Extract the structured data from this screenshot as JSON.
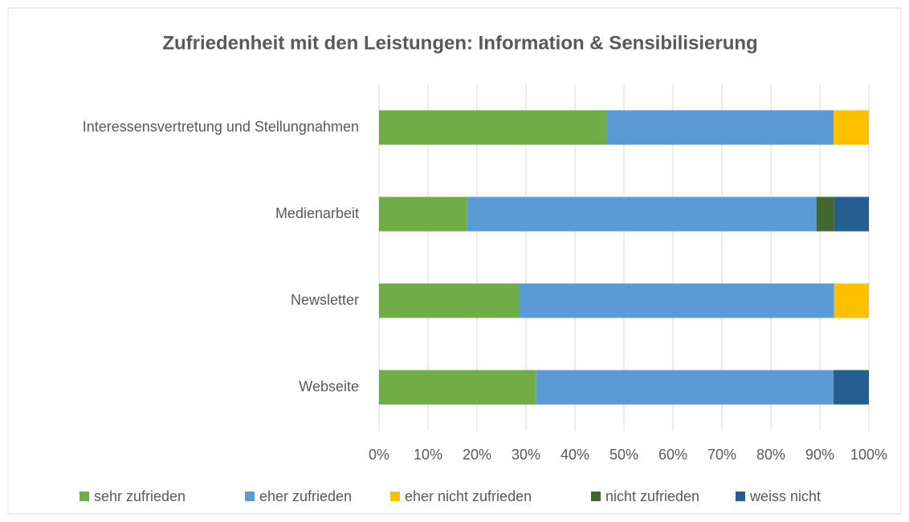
{
  "chart_data": {
    "type": "stacked_bar_horizontal",
    "title": "Zufriedenheit mit den Leistungen: Information & Sensibilisierung",
    "categories": [
      "Interessensvertretung und Stellungnahmen",
      "Medienarbeit",
      "Newsletter",
      "Webseite"
    ],
    "series": [
      {
        "name": "sehr zufrieden",
        "color": "#70ad47",
        "values": [
          46.4,
          17.9,
          28.6,
          32.1
        ]
      },
      {
        "name": "eher zufrieden",
        "color": "#5b9bd5",
        "values": [
          46.4,
          71.4,
          64.3,
          60.7
        ]
      },
      {
        "name": "eher nicht zufrieden",
        "color": "#ffc000",
        "values": [
          7.2,
          0,
          7.1,
          0
        ]
      },
      {
        "name": "nicht zufrieden",
        "color": "#43682b",
        "values": [
          0,
          3.6,
          0,
          0
        ]
      },
      {
        "name": "weiss nicht",
        "color": "#255e91",
        "values": [
          0,
          7.1,
          0,
          7.2
        ]
      }
    ],
    "xlim": [
      0,
      100
    ],
    "xticks": [
      {
        "value": 0,
        "label": "0%"
      },
      {
        "value": 10,
        "label": "10%"
      },
      {
        "value": 20,
        "label": "20%"
      },
      {
        "value": 30,
        "label": "30%"
      },
      {
        "value": 40,
        "label": "40%"
      },
      {
        "value": 50,
        "label": "50%"
      },
      {
        "value": 60,
        "label": "60%"
      },
      {
        "value": 70,
        "label": "70%"
      },
      {
        "value": 80,
        "label": "80%"
      },
      {
        "value": 90,
        "label": "90%"
      },
      {
        "value": 100,
        "label": "100%"
      }
    ],
    "grid": true,
    "legend": "bottom"
  }
}
